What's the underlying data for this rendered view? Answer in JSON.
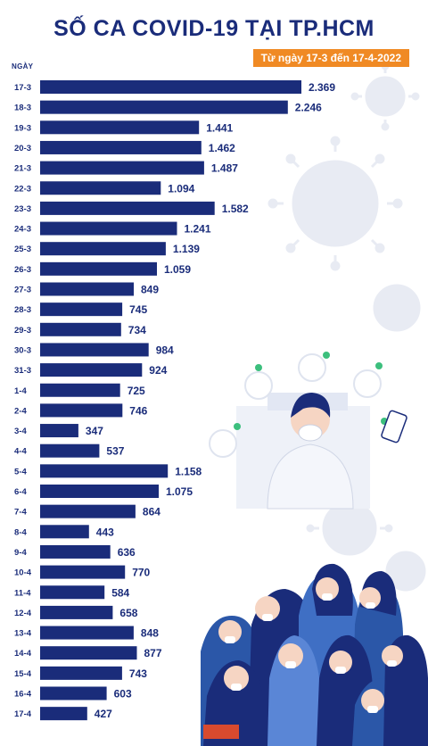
{
  "title": "SỐ CA COVID-19 TẠI TP.HCM",
  "subtitle": "Từ ngày 17-3 đến 17-4-2022",
  "colors": {
    "bar": "#1a2c7a",
    "title": "#1a2c7a",
    "badge": "#f08a24",
    "virus": "#e6e9f2"
  },
  "chart_data": {
    "type": "bar",
    "orientation": "horizontal",
    "ylabel": "NGÀY",
    "xlabel": "",
    "grid": false,
    "categories": [
      "17-3",
      "18-3",
      "19-3",
      "20-3",
      "21-3",
      "22-3",
      "23-3",
      "24-3",
      "25-3",
      "26-3",
      "27-3",
      "28-3",
      "29-3",
      "30-3",
      "31-3",
      "1-4",
      "2-4",
      "3-4",
      "4-4",
      "5-4",
      "6-4",
      "7-4",
      "8-4",
      "9-4",
      "10-4",
      "11-4",
      "12-4",
      "13-4",
      "14-4",
      "15-4",
      "16-4",
      "17-4"
    ],
    "values": [
      2369,
      2246,
      1441,
      1462,
      1487,
      1094,
      1582,
      1241,
      1139,
      1059,
      849,
      745,
      734,
      984,
      924,
      725,
      746,
      347,
      537,
      1158,
      1075,
      864,
      443,
      636,
      770,
      584,
      658,
      848,
      877,
      743,
      603,
      427
    ],
    "value_labels": [
      "2.369",
      "2.246",
      "1.441",
      "1.462",
      "1.487",
      "1.094",
      "1.582",
      "1.241",
      "1.139",
      "1.059",
      "849",
      "745",
      "734",
      "984",
      "924",
      "725",
      "746",
      "347",
      "537",
      "1.158",
      "1.075",
      "864",
      "443",
      "636",
      "770",
      "584",
      "658",
      "848",
      "877",
      "743",
      "603",
      "427"
    ],
    "xlim": [
      0,
      2369
    ]
  }
}
